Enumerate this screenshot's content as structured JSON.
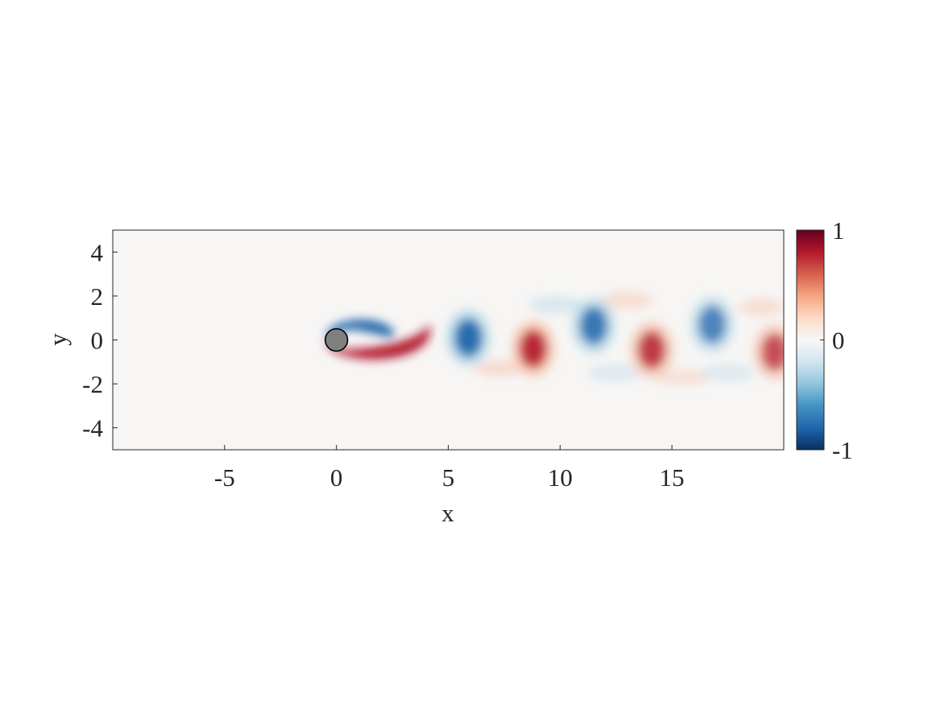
{
  "chart_data": {
    "type": "heatmap",
    "title": "",
    "xlabel": "x",
    "ylabel": "y",
    "xlim": [
      -10,
      20
    ],
    "ylim": [
      -5,
      5
    ],
    "xticks": [
      -5,
      0,
      5,
      10,
      15
    ],
    "xtick_labels": [
      "-5",
      "0",
      "5",
      "10",
      "15"
    ],
    "yticks": [
      4,
      2,
      0,
      -2,
      -4
    ],
    "ytick_labels": [
      "4",
      "2",
      "0",
      "-2",
      "-4"
    ],
    "grid": false,
    "colorbar": {
      "range": [
        -1,
        1
      ],
      "ticks": [
        1,
        0,
        -1
      ],
      "tick_labels": [
        "1",
        "0",
        "-1"
      ],
      "colormap": [
        "#053061",
        "#2166ac",
        "#4393c3",
        "#92c5de",
        "#d1e5f0",
        "#f7f7f7",
        "#fddbc7",
        "#f4a582",
        "#d6604d",
        "#b2182b",
        "#67001f"
      ]
    },
    "cylinder": {
      "center_x": 0,
      "center_y": 0,
      "radius": 0.5,
      "fill": "#808080"
    },
    "vortices": [
      {
        "x": 1.8,
        "y": 0.55,
        "sign": -1,
        "strength": 1.0
      },
      {
        "x": 2.8,
        "y": -0.55,
        "sign": 1,
        "strength": 1.0
      },
      {
        "x": 5.9,
        "y": 0.1,
        "sign": -1,
        "strength": 0.95
      },
      {
        "x": 8.8,
        "y": -0.4,
        "sign": 1,
        "strength": 0.9
      },
      {
        "x": 11.5,
        "y": 0.65,
        "sign": -1,
        "strength": 0.85
      },
      {
        "x": 14.1,
        "y": -0.45,
        "sign": 1,
        "strength": 0.8
      },
      {
        "x": 16.8,
        "y": 0.7,
        "sign": -1,
        "strength": 0.75
      },
      {
        "x": 19.6,
        "y": -0.55,
        "sign": 1,
        "strength": 0.7
      }
    ]
  }
}
